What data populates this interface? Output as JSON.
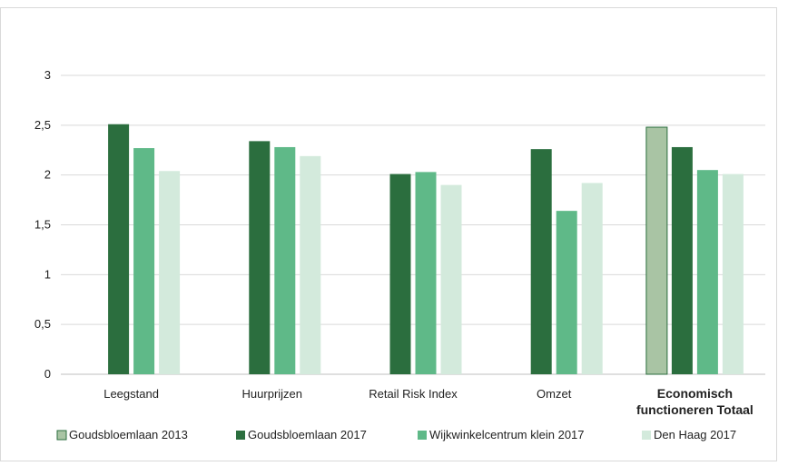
{
  "chart_data": {
    "type": "bar",
    "categories": [
      {
        "lines": [
          "Leegstand"
        ],
        "bold": false
      },
      {
        "lines": [
          "Huurprijzen"
        ],
        "bold": false
      },
      {
        "lines": [
          "Retail Risk Index"
        ],
        "bold": false
      },
      {
        "lines": [
          "Omzet"
        ],
        "bold": false
      },
      {
        "lines": [
          "Economisch",
          "functioneren Totaal"
        ],
        "bold": true
      }
    ],
    "series": [
      {
        "name": "Goudsbloemlaan 2013",
        "color": "#a9c4a4",
        "values": [
          null,
          null,
          null,
          null,
          2.48
        ]
      },
      {
        "name": "Goudsbloemlaan 2017",
        "color": "#2b6e3e",
        "values": [
          2.51,
          2.34,
          2.01,
          2.26,
          2.28
        ]
      },
      {
        "name": "Wijkwinkelcentrum klein 2017",
        "color": "#5fb988",
        "values": [
          2.27,
          2.28,
          2.03,
          1.64,
          2.05
        ]
      },
      {
        "name": "Den Haag 2017",
        "color": "#d3eadc",
        "values": [
          2.04,
          2.19,
          1.9,
          1.92,
          2.01
        ]
      }
    ],
    "yticks": [
      "0",
      "0,5",
      "1",
      "1,5",
      "2",
      "2,5",
      "3"
    ],
    "ylim": [
      0,
      3
    ],
    "grid": true,
    "legend_position": "bottom"
  }
}
